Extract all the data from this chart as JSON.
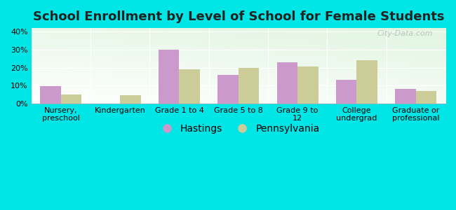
{
  "title": "School Enrollment by Level of School for Female Students",
  "categories": [
    "Nursery,\npreschool",
    "Kindergarten",
    "Grade 1 to 4",
    "Grade 5 to 8",
    "Grade 9 to\n12",
    "College\nundergrad",
    "Graduate or\nprofessional"
  ],
  "hastings": [
    9.5,
    0,
    30,
    16,
    23,
    13,
    8
  ],
  "pennsylvania": [
    5,
    4.5,
    19,
    20,
    20.5,
    24,
    7
  ],
  "hastings_color": "#cc99cc",
  "pennsylvania_color": "#cccc99",
  "background_color": "#00e5e5",
  "plot_bg_topleft": "#e8f5e0",
  "plot_bg_topright": "#e0efe0",
  "plot_bg_bottom": "#ffffff",
  "yticks": [
    0,
    10,
    20,
    30,
    40
  ],
  "ylim": [
    0,
    42
  ],
  "bar_width": 0.35,
  "title_fontsize": 13,
  "tick_fontsize": 8,
  "legend_fontsize": 10,
  "watermark": "City-Data.com"
}
